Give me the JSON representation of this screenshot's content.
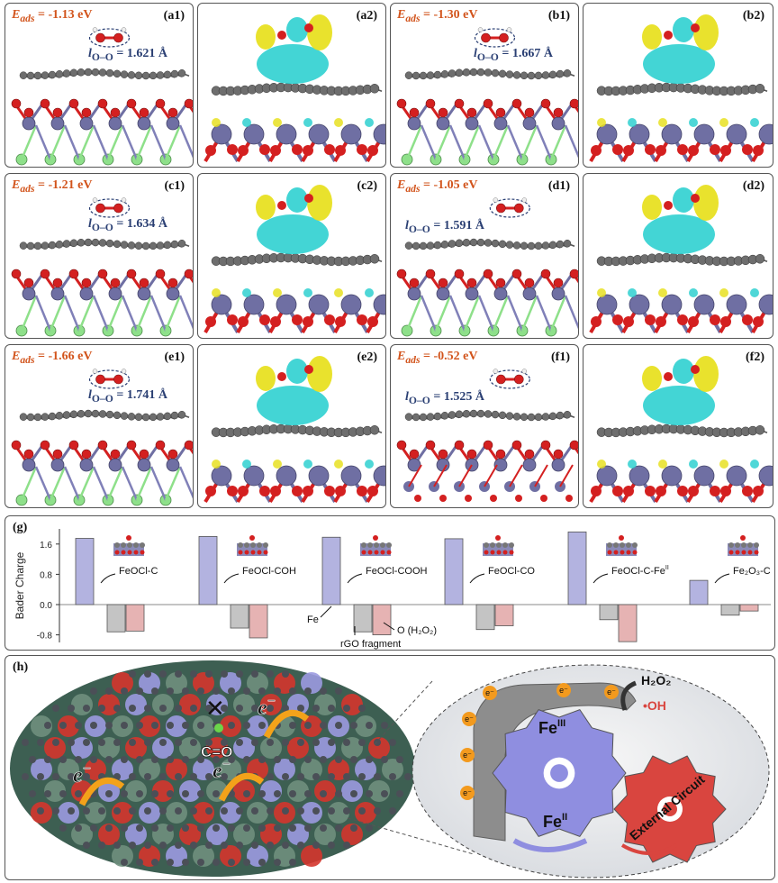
{
  "panels": [
    {
      "id": "a1",
      "label": "(a1)",
      "eads": "= -1.13 eV",
      "loo": "= 1.621 Å",
      "lo_pos": "right"
    },
    {
      "id": "a2",
      "label": "(a2)"
    },
    {
      "id": "b1",
      "label": "(b1)",
      "eads": "= -1.30 eV",
      "loo": "= 1.667 Å",
      "lo_pos": "right"
    },
    {
      "id": "b2",
      "label": "(b2)"
    },
    {
      "id": "c1",
      "label": "(c1)",
      "eads": "= -1.21 eV",
      "loo": "= 1.634 Å",
      "lo_pos": "right"
    },
    {
      "id": "c2",
      "label": "(c2)"
    },
    {
      "id": "d1",
      "label": "(d1)",
      "eads": "= -1.05 eV",
      "loo": "= 1.591 Å",
      "lo_pos": "left"
    },
    {
      "id": "d2",
      "label": "(d2)"
    },
    {
      "id": "e1",
      "label": "(e1)",
      "eads": "= -1.66 eV",
      "loo": "= 1.741 Å",
      "lo_pos": "right"
    },
    {
      "id": "e2",
      "label": "(e2)"
    },
    {
      "id": "f1",
      "label": "(f1)",
      "eads": "= -0.52 eV",
      "loo": "= 1.525 Å",
      "lo_pos": "left"
    },
    {
      "id": "f2",
      "label": "(f2)"
    }
  ],
  "eads_symbol": "E",
  "eads_sub": "ads",
  "loo_symbol": "l",
  "loo_sub": "O–O",
  "chart_g": {
    "label": "(g)",
    "chart_data": {
      "type": "bar",
      "ylabel": "Bader Charge",
      "yticks": [
        "1.6",
        "0.8",
        "0.0",
        "-0.8"
      ],
      "ylim": [
        -1.0,
        2.0
      ],
      "categories": [
        "FeOCl-C",
        "FeOCl-COH",
        "FeOCl-COOH",
        "FeOCl-CO",
        "FeOCl-C-Fe",
        "Fe2O3-C"
      ],
      "category_labels": [
        "FeOCl-C",
        "FeOCl-COH",
        "FeOCl-COOH",
        "FeOCl-CO",
        "FeOCl-C-Fe",
        "Fe₂O₃-C"
      ],
      "series": [
        {
          "name": "Fe",
          "color": "#b3b3e0",
          "values": [
            1.75,
            1.8,
            1.78,
            1.74,
            1.92,
            0.64
          ]
        },
        {
          "name": "rGO fragment",
          "color": "#c4c4c4",
          "values": [
            -0.72,
            -0.62,
            -0.72,
            -0.66,
            -0.4,
            -0.28
          ]
        },
        {
          "name": "O (H2O2)",
          "color": "#e6b3b3",
          "values": [
            -0.7,
            -0.88,
            -0.8,
            -0.56,
            -0.98,
            -0.17
          ]
        }
      ],
      "annotations": {
        "fe": "Fe",
        "rgo": "rGO fragment",
        "o": "O (H₂O₂)",
        "fe2sup": "II"
      }
    }
  },
  "panel_h": {
    "label": "(h)",
    "electron": "e",
    "electron_sup": "−",
    "co_label": "C=O",
    "cross": "✕",
    "fe3": "Fe",
    "fe3_sup": "III",
    "fe2": "Fe",
    "fe2_sup": "II",
    "h2o2": "H₂O₂",
    "oh": "•OH",
    "external": "External Circuit",
    "emark": "e⁻"
  },
  "colors": {
    "eads": "#d2541c",
    "loo": "#2a3f73",
    "fe_atom": "#6f6fa3",
    "o_atom": "#d42020",
    "cl_atom": "#8ee08a",
    "c_atom": "#6e6e6e",
    "cyan": "#2fd0d0",
    "yellow": "#e8e022"
  }
}
